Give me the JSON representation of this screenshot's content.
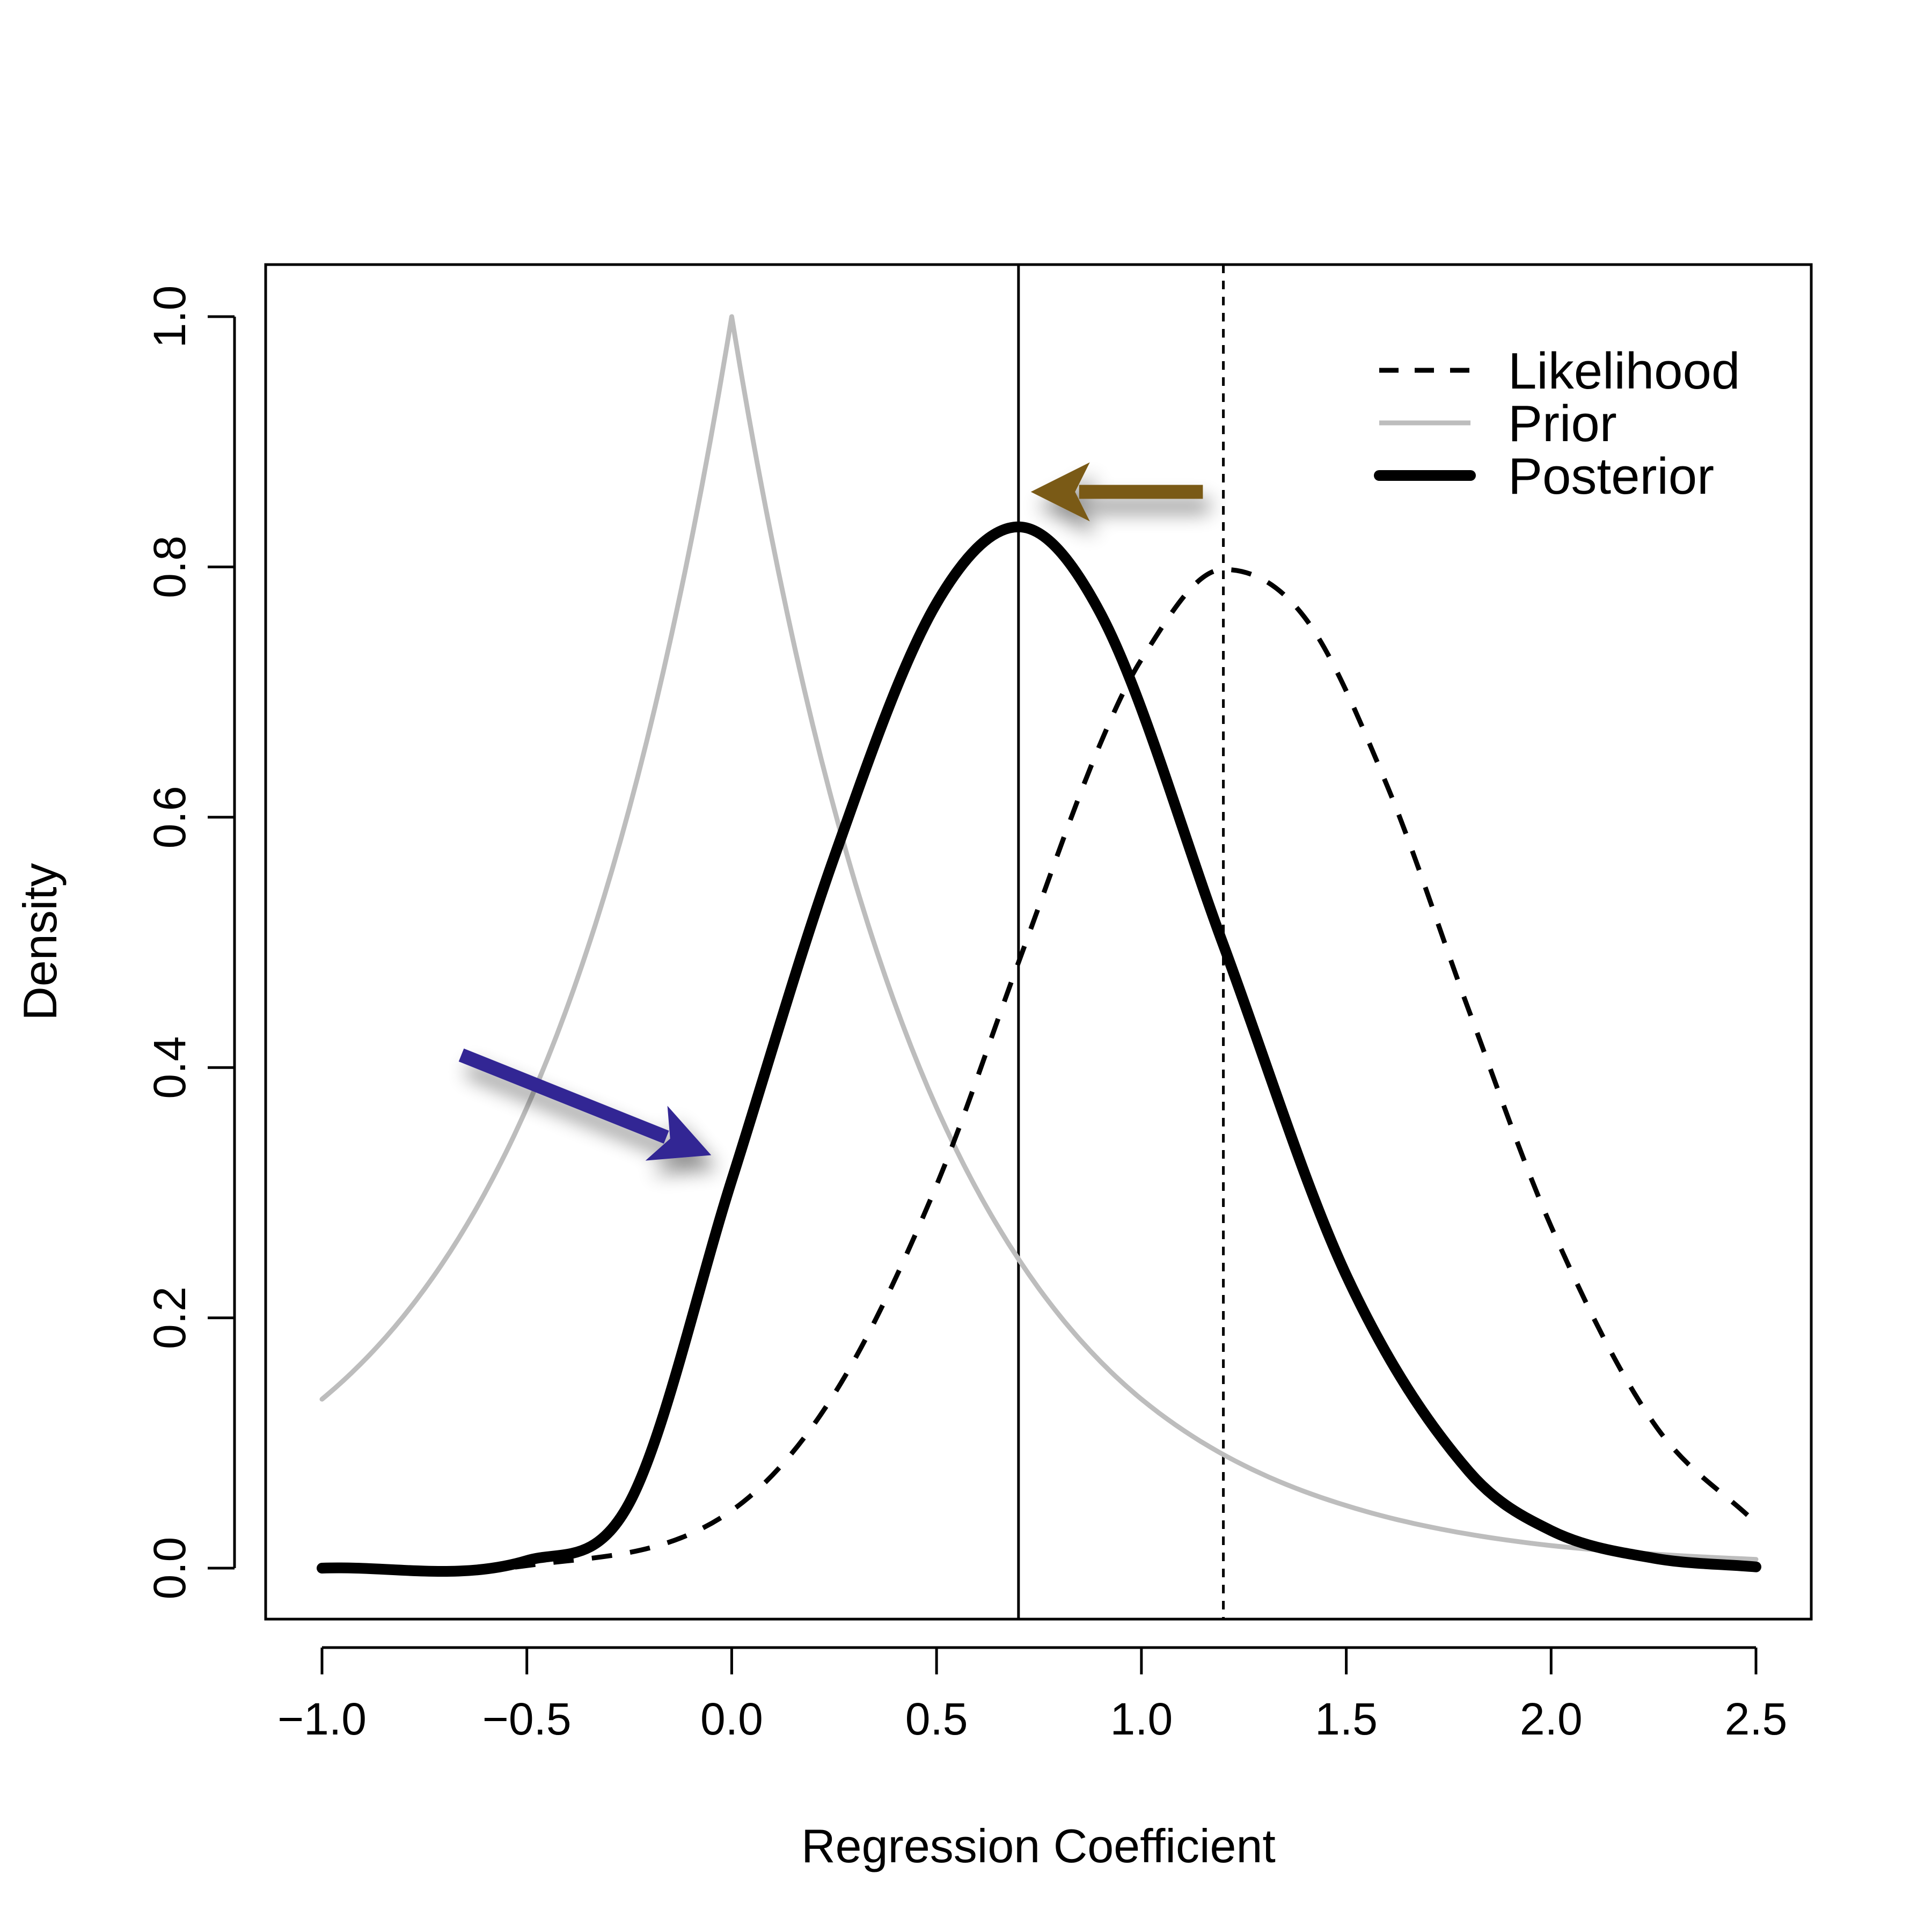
{
  "chart_data": {
    "type": "line",
    "title": "",
    "xlabel": "Regression Coefficient",
    "ylabel": "Density",
    "xlim": [
      -1.0,
      2.5
    ],
    "ylim": [
      0.0,
      1.0
    ],
    "x_ticks": [
      "-1.0",
      "-0.5",
      "0.0",
      "0.5",
      "1.0",
      "1.5",
      "2.0",
      "2.5"
    ],
    "y_ticks": [
      "0.0",
      "0.2",
      "0.4",
      "0.6",
      "0.8",
      "1.0"
    ],
    "grid": false,
    "legend_position": "top-right",
    "series": [
      {
        "name": "Likelihood",
        "style": "dashed",
        "color": "#000000",
        "x": [
          -1.0,
          -0.5,
          0.0,
          0.25,
          0.5,
          0.7,
          0.9,
          1.0,
          1.2,
          1.4,
          1.6,
          1.8,
          2.0,
          2.25,
          2.5
        ],
        "y": [
          0.0,
          0.002,
          0.046,
          0.139,
          0.306,
          0.484,
          0.659,
          0.726,
          0.798,
          0.759,
          0.625,
          0.445,
          0.273,
          0.116,
          0.036
        ]
      },
      {
        "name": "Prior",
        "style": "solid",
        "color": "#bdbdbd",
        "x": [
          -1.0,
          -0.75,
          -0.5,
          -0.25,
          0.0,
          0.25,
          0.5,
          0.7,
          1.0,
          1.5,
          2.0,
          2.5
        ],
        "y": [
          0.135,
          0.223,
          0.368,
          0.607,
          1.0,
          0.607,
          0.368,
          0.247,
          0.135,
          0.05,
          0.018,
          0.007
        ]
      },
      {
        "name": "Posterior",
        "style": "bold",
        "color": "#000000",
        "x": [
          -1.0,
          -0.5,
          -0.25,
          0.0,
          0.25,
          0.5,
          0.7,
          0.9,
          1.2,
          1.5,
          1.8,
          2.0,
          2.25,
          2.5
        ],
        "y": [
          0.0,
          0.006,
          0.052,
          0.31,
          0.568,
          0.771,
          0.832,
          0.763,
          0.498,
          0.234,
          0.077,
          0.03,
          0.008,
          0.001
        ]
      }
    ],
    "reference_lines": [
      {
        "x": 0.7,
        "style": "solid"
      },
      {
        "x": 1.2,
        "style": "dashed"
      }
    ],
    "annotations": [
      {
        "type": "arrow",
        "color": "#322894",
        "from": [
          -0.66,
          0.41
        ],
        "to": [
          -0.05,
          0.33
        ]
      },
      {
        "type": "arrow",
        "color": "#7a5a14",
        "from": [
          1.15,
          0.86
        ],
        "to": [
          0.73,
          0.86
        ]
      }
    ]
  }
}
